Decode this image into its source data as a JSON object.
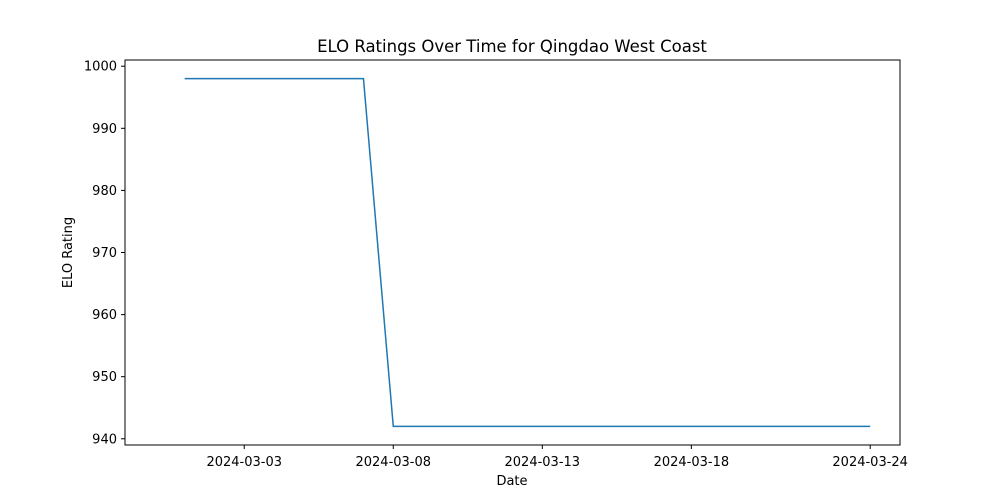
{
  "chart_data": {
    "type": "line",
    "title": "ELO Ratings Over Time for Qingdao West Coast",
    "xlabel": "Date",
    "ylabel": "ELO Rating",
    "x_ticks": [
      "2024-03-03",
      "2024-03-08",
      "2024-03-13",
      "2024-03-18",
      "2024-03-24"
    ],
    "y_ticks": [
      940,
      950,
      960,
      970,
      980,
      990,
      1000
    ],
    "xlim": [
      "2024-02-28",
      "2024-03-25"
    ],
    "ylim": [
      939,
      1001
    ],
    "grid": false,
    "series": [
      {
        "color": "#1f77b4",
        "x": [
          "2024-03-01",
          "2024-03-07",
          "2024-03-08",
          "2024-03-24"
        ],
        "y": [
          998,
          998,
          942,
          942
        ]
      }
    ]
  }
}
